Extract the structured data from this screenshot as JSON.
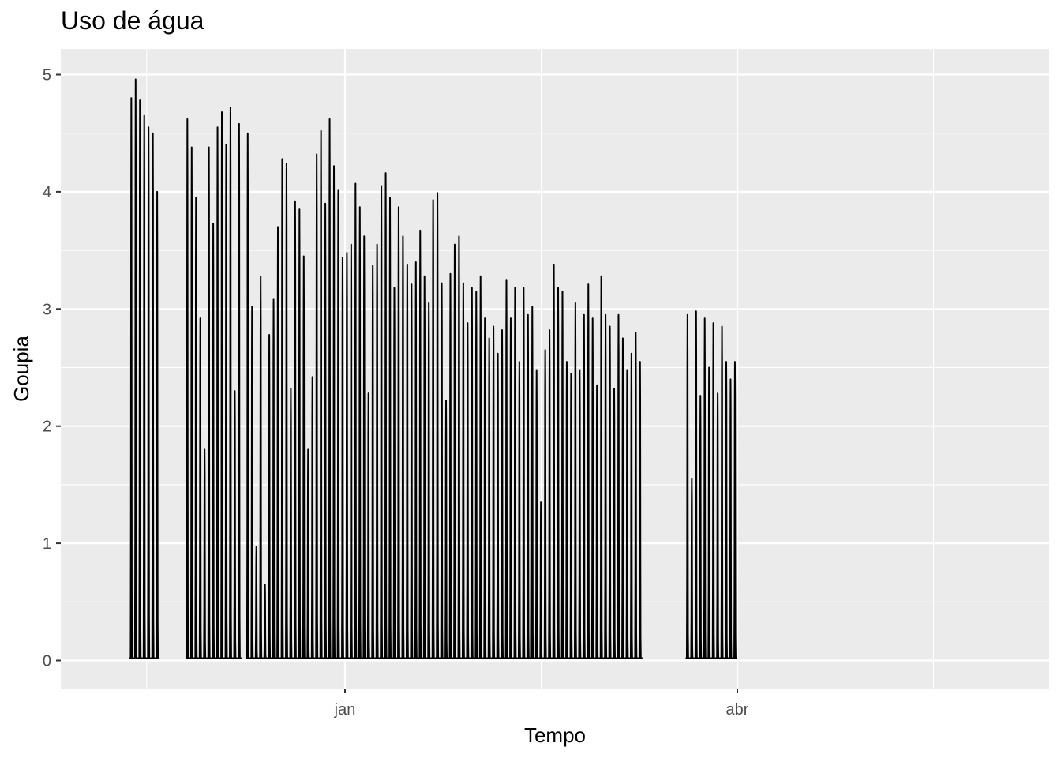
{
  "chart_data": {
    "type": "line",
    "title": "Uso de água",
    "xlabel": "Tempo",
    "ylabel": "Goupia",
    "x_tick_labels": [
      "jan",
      "abr"
    ],
    "y_tick_labels": [
      "0",
      "1",
      "2",
      "3",
      "4",
      "5"
    ],
    "ylim": [
      -0.25,
      5.2
    ],
    "grid": true,
    "line_color": "#000000",
    "panel_color": "#ebebeb",
    "series": [
      {
        "peak_dates": [
          "2019-11-12",
          "2019-11-13",
          "2019-11-14",
          "2019-11-15",
          "2019-11-16",
          "2019-11-17",
          "2019-11-18",
          "2019-11-25",
          "2019-11-26",
          "2019-11-27",
          "2019-11-28",
          "2019-11-29",
          "2019-11-30",
          "2019-12-01",
          "2019-12-02",
          "2019-12-03",
          "2019-12-04",
          "2019-12-05",
          "2019-12-06",
          "2019-12-07",
          "2019-12-09",
          "2019-12-10",
          "2019-12-11",
          "2019-12-12",
          "2019-12-13",
          "2019-12-14",
          "2019-12-15",
          "2019-12-16",
          "2019-12-17",
          "2019-12-18",
          "2019-12-19",
          "2019-12-20",
          "2019-12-21",
          "2019-12-22",
          "2019-12-23",
          "2019-12-24",
          "2019-12-25",
          "2019-12-26",
          "2019-12-27",
          "2019-12-28",
          "2019-12-29",
          "2019-12-30",
          "2019-12-31",
          "2020-01-01",
          "2020-01-02",
          "2020-01-03",
          "2020-01-04",
          "2020-01-05",
          "2020-01-06",
          "2020-01-07",
          "2020-01-08",
          "2020-01-09",
          "2020-01-10",
          "2020-01-11",
          "2020-01-12",
          "2020-01-13",
          "2020-01-14",
          "2020-01-15",
          "2020-01-16",
          "2020-01-17",
          "2020-01-18",
          "2020-01-19",
          "2020-01-20",
          "2020-01-21",
          "2020-01-22",
          "2020-01-23",
          "2020-01-24",
          "2020-01-25",
          "2020-01-26",
          "2020-01-27",
          "2020-01-28",
          "2020-01-29",
          "2020-01-30",
          "2020-01-31",
          "2020-02-01",
          "2020-02-02",
          "2020-02-03",
          "2020-02-04",
          "2020-02-05",
          "2020-02-06",
          "2020-02-07",
          "2020-02-08",
          "2020-02-09",
          "2020-02-10",
          "2020-02-11",
          "2020-02-12",
          "2020-02-13",
          "2020-02-14",
          "2020-02-15",
          "2020-02-16",
          "2020-02-17",
          "2020-02-18",
          "2020-02-19",
          "2020-02-20",
          "2020-02-21",
          "2020-02-22",
          "2020-02-23",
          "2020-02-24",
          "2020-02-25",
          "2020-02-26",
          "2020-02-27",
          "2020-02-28",
          "2020-02-29",
          "2020-03-01",
          "2020-03-02",
          "2020-03-03",
          "2020-03-04",
          "2020-03-05",
          "2020-03-06",
          "2020-03-07",
          "2020-03-08",
          "2020-03-09",
          "2020-03-20",
          "2020-03-21",
          "2020-03-22",
          "2020-03-23",
          "2020-03-24",
          "2020-03-25",
          "2020-03-26",
          "2020-03-27",
          "2020-03-28",
          "2020-03-29",
          "2020-03-30",
          "2020-03-31"
        ],
        "peak_values": [
          4.8,
          4.96,
          4.78,
          4.65,
          4.55,
          4.5,
          4.0,
          4.62,
          4.38,
          3.95,
          2.92,
          1.8,
          4.38,
          3.73,
          4.55,
          4.68,
          4.4,
          4.72,
          2.3,
          4.58,
          4.5,
          3.02,
          0.97,
          3.28,
          0.65,
          2.78,
          3.08,
          3.7,
          4.28,
          4.24,
          2.32,
          3.92,
          3.85,
          3.45,
          1.8,
          2.42,
          4.32,
          4.52,
          3.9,
          4.62,
          4.22,
          4.01,
          3.44,
          3.48,
          3.55,
          4.07,
          3.87,
          3.62,
          2.28,
          3.37,
          3.55,
          4.05,
          4.16,
          3.95,
          3.18,
          3.87,
          3.62,
          3.38,
          3.21,
          3.4,
          3.67,
          3.28,
          3.05,
          3.93,
          3.99,
          3.22,
          2.22,
          3.3,
          3.55,
          3.62,
          3.22,
          2.88,
          3.18,
          3.15,
          3.28,
          2.92,
          2.75,
          2.85,
          2.62,
          2.82,
          3.25,
          2.92,
          3.18,
          2.55,
          3.18,
          2.95,
          3.02,
          2.48,
          1.35,
          2.65,
          2.82,
          3.38,
          3.18,
          3.15,
          2.55,
          2.45,
          3.05,
          2.48,
          2.95,
          3.21,
          2.92,
          2.35,
          3.28,
          2.95,
          2.85,
          2.32,
          2.95,
          2.75,
          2.48,
          2.62,
          2.8,
          2.55,
          2.95,
          1.55,
          2.98,
          2.26,
          2.92,
          2.5,
          2.88,
          2.28,
          2.85,
          2.55,
          2.4,
          2.55
        ]
      }
    ],
    "segments": [
      [
        "2019-11-12",
        "2019-11-18"
      ],
      [
        "2019-11-25",
        "2019-12-07"
      ],
      [
        "2019-12-09",
        "2020-03-09"
      ],
      [
        "2020-03-20",
        "2020-03-31"
      ]
    ]
  }
}
